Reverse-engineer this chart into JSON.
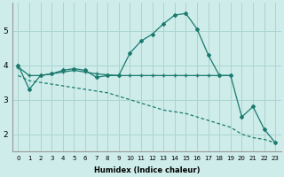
{
  "xlabel": "Humidex (Indice chaleur)",
  "background_color": "#ceecea",
  "grid_color": "#aad4d0",
  "line_color": "#1a7a6e",
  "line1": {
    "x": [
      0,
      1,
      2,
      3,
      4,
      5,
      6,
      7,
      8,
      9,
      10,
      11,
      12,
      13,
      14,
      15,
      16,
      17,
      18,
      19,
      20,
      21,
      22,
      23
    ],
    "y": [
      4.0,
      3.3,
      3.7,
      3.75,
      3.85,
      3.9,
      3.85,
      3.65,
      3.7,
      3.7,
      4.35,
      4.7,
      4.9,
      5.2,
      5.45,
      5.5,
      5.05,
      4.3,
      3.7,
      3.7,
      2.5,
      2.8,
      2.15,
      1.75
    ]
  },
  "line2": {
    "x": [
      0,
      1,
      2,
      3,
      4,
      5,
      6,
      7,
      8,
      9,
      10,
      11,
      12,
      13,
      14,
      15,
      16,
      17,
      18,
      19
    ],
    "y": [
      3.95,
      3.7,
      3.7,
      3.75,
      3.8,
      3.85,
      3.8,
      3.75,
      3.72,
      3.7,
      3.7,
      3.7,
      3.7,
      3.7,
      3.7,
      3.7,
      3.7,
      3.7,
      3.7,
      3.7
    ]
  },
  "line3": {
    "x": [
      0,
      1,
      2,
      3,
      4,
      5,
      6,
      7,
      8,
      9,
      10,
      11,
      12,
      13,
      14,
      15,
      16,
      17,
      18,
      19,
      20,
      21,
      22,
      23
    ],
    "y": [
      3.7,
      3.55,
      3.5,
      3.45,
      3.4,
      3.35,
      3.3,
      3.25,
      3.2,
      3.1,
      3.0,
      2.9,
      2.8,
      2.7,
      2.65,
      2.6,
      2.5,
      2.4,
      2.3,
      2.2,
      2.0,
      1.9,
      1.85,
      1.75
    ]
  },
  "ylim": [
    1.5,
    5.8
  ],
  "xlim": [
    -0.5,
    23.5
  ],
  "yticks": [
    2,
    3,
    4,
    5
  ],
  "xticks": [
    0,
    1,
    2,
    3,
    4,
    5,
    6,
    7,
    8,
    9,
    10,
    11,
    12,
    13,
    14,
    15,
    16,
    17,
    18,
    19,
    20,
    21,
    22,
    23
  ],
  "xtick_labels": [
    "0",
    "1",
    "2",
    "3",
    "4",
    "5",
    "6",
    "7",
    "8",
    "9",
    "10",
    "11",
    "12",
    "13",
    "14",
    "15",
    "16",
    "17",
    "18",
    "19",
    "20",
    "21",
    "22",
    "23"
  ]
}
